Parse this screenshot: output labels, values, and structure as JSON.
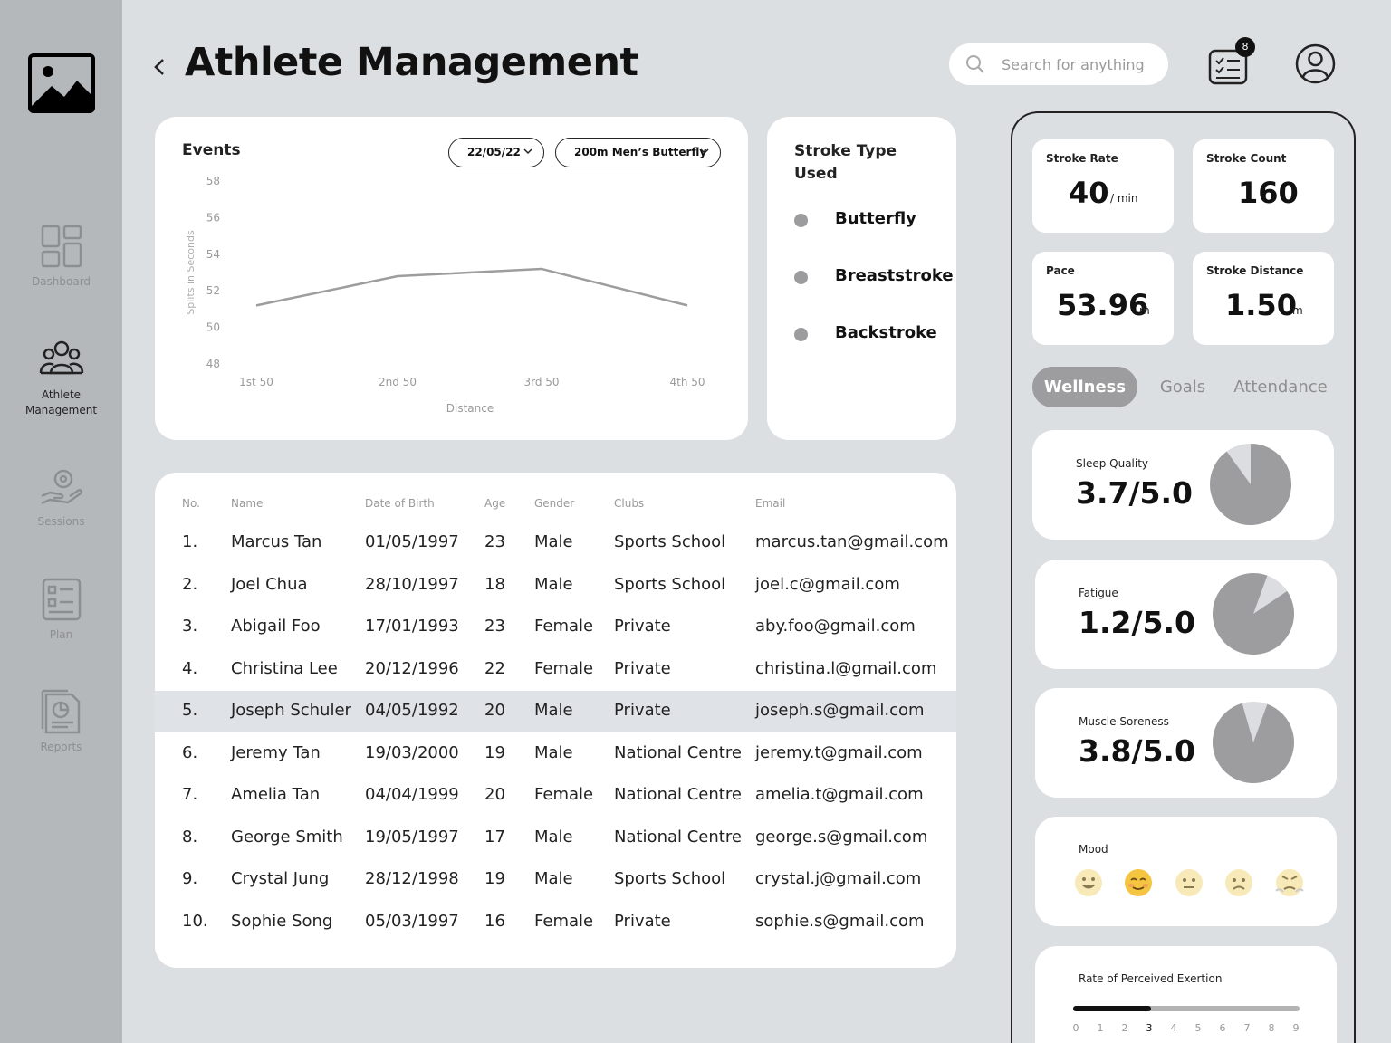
{
  "page": {
    "title": "Athlete Management"
  },
  "sidebar": {
    "items": [
      {
        "label": "Dashboard",
        "icon": "dashboard-icon"
      },
      {
        "label": "Athlete Management",
        "icon": "people-icon"
      },
      {
        "label": "Sessions",
        "icon": "sessions-icon"
      },
      {
        "label": "Plan",
        "icon": "plan-icon"
      },
      {
        "label": "Reports",
        "icon": "reports-icon"
      }
    ],
    "active": "Athlete Management"
  },
  "search": {
    "placeholder": "Search for anything"
  },
  "tasks": {
    "count": "8"
  },
  "events": {
    "title": "Events",
    "date": "22/05/22",
    "event": "200m Men’s Butterfly"
  },
  "chart_data": {
    "type": "line",
    "title": "",
    "xlabel": "Distance",
    "ylabel": "Splits in Seconds",
    "categories": [
      "1st 50",
      "2nd 50",
      "3rd 50",
      "4th 50"
    ],
    "values": [
      51.2,
      52.8,
      53.2,
      51.2
    ],
    "ylim": [
      48,
      58
    ],
    "yticks": [
      48,
      50,
      52,
      54,
      56,
      58
    ],
    "grid": false,
    "color": "#9d9d9f"
  },
  "stroke_types": {
    "title": "Stroke Type Used",
    "items": [
      "Butterfly",
      "Breaststroke",
      "Backstroke"
    ]
  },
  "table": {
    "columns": [
      "No.",
      "Name",
      "Date of Birth",
      "Age",
      "Gender",
      "Clubs",
      "Email"
    ],
    "rows": [
      [
        "1.",
        "Marcus Tan",
        "01/05/1997",
        "23",
        "Male",
        "Sports School",
        "marcus.tan@gmail.com"
      ],
      [
        "2.",
        "Joel Chua",
        "28/10/1997",
        "18",
        "Male",
        "Sports School",
        "joel.c@gmail.com"
      ],
      [
        "3.",
        "Abigail Foo",
        "17/01/1993",
        "23",
        "Female",
        "Private",
        "aby.foo@gmail.com"
      ],
      [
        "4.",
        "Christina Lee",
        "20/12/1996",
        "22",
        "Female",
        "Private",
        "christina.l@gmail.com"
      ],
      [
        "5.",
        "Joseph Schuler",
        "04/05/1992",
        "20",
        "Male",
        "Private",
        "joseph.s@gmail.com"
      ],
      [
        "6.",
        "Jeremy Tan",
        "19/03/2000",
        "19",
        "Male",
        "National Centre",
        "jeremy.t@gmail.com"
      ],
      [
        "7.",
        "Amelia Tan",
        "04/04/1999",
        "20",
        "Female",
        "National Centre",
        "amelia.t@gmail.com"
      ],
      [
        "8.",
        "George Smith",
        "19/05/1997",
        "17",
        "Male",
        "National Centre",
        "george.s@gmail.com"
      ],
      [
        "9.",
        "Crystal Jung",
        "28/12/1998",
        "19",
        "Male",
        "Sports School",
        "crystal.j@gmail.com"
      ],
      [
        "10.",
        "Sophie Song",
        "05/03/1997",
        "16",
        "Female",
        "Private",
        "sophie.s@gmail.com"
      ]
    ],
    "selected_row": 4
  },
  "metrics": {
    "stroke_rate": {
      "label": "Stroke Rate",
      "value": "40",
      "unit": "/ min"
    },
    "stroke_count": {
      "label": "Stroke Count",
      "value": "160"
    },
    "pace": {
      "label": "Pace",
      "value": "53.96",
      "unit": "m"
    },
    "stroke_distance": {
      "label": "Stroke Distance",
      "value": "1.50",
      "unit": "m"
    }
  },
  "tabs": {
    "items": [
      "Wellness",
      "Goals",
      "Attendance"
    ],
    "active": "Wellness"
  },
  "wellness": {
    "sleep": {
      "label": "Sleep Quality",
      "value": "3.7/5.0",
      "fraction": 0.9
    },
    "fatigue": {
      "label": "Fatigue",
      "value": "1.2/5.0",
      "fraction": 0.9
    },
    "soreness": {
      "label": "Muscle Soreness",
      "value": "3.8/5.0",
      "fraction": 0.9
    },
    "mood": {
      "label": "Mood",
      "selected": 1,
      "icons": [
        "grinning-face-icon",
        "relieved-face-icon",
        "neutral-face-icon",
        "frowning-face-icon",
        "angry-face-icon"
      ]
    },
    "rpe": {
      "label": "Rate of Perceived Exertion",
      "value": 3,
      "scale": [
        "0",
        "1",
        "2",
        "3",
        "4",
        "5",
        "6",
        "7",
        "8",
        "9"
      ]
    }
  },
  "colors": {
    "accent": "#9d9d9f",
    "sidebar": "#b5b8bb",
    "background": "#dcdfe2"
  }
}
